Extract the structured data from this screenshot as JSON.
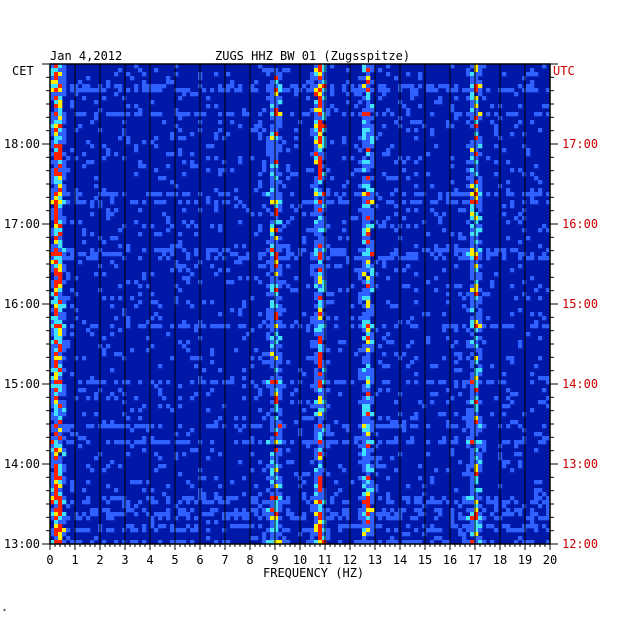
{
  "chart_data": {
    "type": "heatmap",
    "title_left": "Jan 4,2012",
    "title_center": "ZUGS HHZ BW 01 (Zugsspitze)",
    "left_axis_label": "CET",
    "right_axis_label": "UTC",
    "xlabel": "FREQUENCY (HZ)",
    "xlim": [
      0,
      20
    ],
    "x_ticks": [
      "0",
      "1",
      "2",
      "3",
      "4",
      "5",
      "6",
      "7",
      "8",
      "9",
      "10",
      "11",
      "12",
      "13",
      "14",
      "15",
      "16",
      "17",
      "18",
      "19",
      "20"
    ],
    "left_ticks": [
      {
        "label": "18:00",
        "hour": 18
      },
      {
        "label": "17:00",
        "hour": 17
      },
      {
        "label": "16:00",
        "hour": 16
      },
      {
        "label": "15:00",
        "hour": 15
      },
      {
        "label": "14:00",
        "hour": 14
      },
      {
        "label": "13:00",
        "hour": 13
      }
    ],
    "right_ticks": [
      {
        "label": "17:00",
        "hour": 17
      },
      {
        "label": "16:00",
        "hour": 16
      },
      {
        "label": "15:00",
        "hour": 15
      },
      {
        "label": "14:00",
        "hour": 14
      },
      {
        "label": "13:00",
        "hour": 13
      },
      {
        "label": "12:00",
        "hour": 12
      }
    ],
    "cet_range": [
      13.0,
      19.0
    ],
    "colors": {
      "background": "#0018a8",
      "low": "#0010c8",
      "mid": "#3060ff",
      "cyan": "#40e0ff",
      "high": "#ffee00",
      "peak": "#ff2000",
      "grid": "#000000",
      "utc_text": "#cc0000"
    },
    "spectral_features": [
      {
        "freq": 0.3,
        "desc": "strong low-frequency energy throughout"
      },
      {
        "freq": 9.0,
        "desc": "narrow persistent line"
      },
      {
        "freq": 10.8,
        "desc": "persistent line, strongest 18:00-19:00"
      },
      {
        "freq": 12.7,
        "desc": "intermittent band"
      },
      {
        "freq": 17.0,
        "desc": "intermittent peaks near 15:50 and 16:40"
      }
    ]
  }
}
